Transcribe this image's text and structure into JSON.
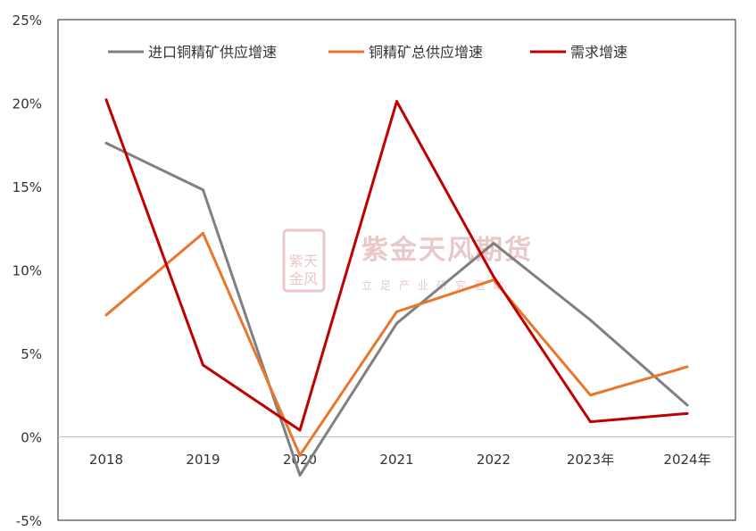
{
  "chart_data": {
    "type": "line",
    "categories": [
      "2018",
      "2019",
      "2020",
      "2021",
      "2022",
      "2023年",
      "2024年"
    ],
    "yticks": [
      "25%",
      "20%",
      "15%",
      "10%",
      "5%",
      "0%",
      "-5%"
    ],
    "ylim": [
      -5,
      25
    ],
    "grid": false,
    "legend_position": "top",
    "series": [
      {
        "name": "进口铜精矿供应增速",
        "color": "#808080",
        "values": [
          17.6,
          14.8,
          -2.3,
          6.8,
          11.6,
          7.0,
          1.9
        ]
      },
      {
        "name": "铜精矿总供应增速",
        "color": "#e8762d",
        "values": [
          7.3,
          12.2,
          -1.1,
          7.5,
          9.4,
          2.5,
          4.2
        ]
      },
      {
        "name": "需求增速",
        "color": "#c00000",
        "values": [
          20.2,
          4.3,
          0.4,
          20.1,
          9.6,
          0.9,
          1.4
        ]
      }
    ]
  },
  "watermark": {
    "name": "紫金天风期货",
    "slogan": "立足产业研究驱动",
    "seal": "紫天金风",
    "color": "#e8c8c8"
  }
}
